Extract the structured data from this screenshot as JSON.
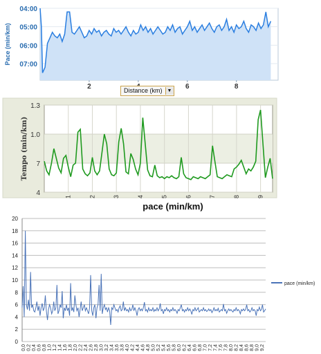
{
  "chart_data": [
    {
      "type": "area",
      "ylabel": "Pace (min/km)",
      "yticks": [
        "04:00",
        "05:00",
        "06:00",
        "07:00"
      ],
      "yticks_min": [
        4,
        5,
        6,
        7
      ],
      "xticks": [
        2,
        4,
        6,
        8
      ],
      "ylim": [
        7.9,
        4.0
      ],
      "xlim": [
        0,
        9.7
      ],
      "y_inverted": true,
      "grid": "horizontal",
      "colors": {
        "line": "#2a7ee0",
        "fill": "#cfe2f7",
        "axis_text": "#2a6db0"
      },
      "x": [
        0,
        0.05,
        0.1,
        0.2,
        0.3,
        0.4,
        0.5,
        0.6,
        0.7,
        0.8,
        0.9,
        1.0,
        1.1,
        1.2,
        1.3,
        1.4,
        1.5,
        1.6,
        1.7,
        1.8,
        1.9,
        2.0,
        2.1,
        2.2,
        2.3,
        2.4,
        2.5,
        2.6,
        2.7,
        2.8,
        2.9,
        3.0,
        3.1,
        3.2,
        3.3,
        3.4,
        3.5,
        3.6,
        3.7,
        3.8,
        3.9,
        4.0,
        4.1,
        4.2,
        4.3,
        4.4,
        4.5,
        4.6,
        4.7,
        4.8,
        4.9,
        5.0,
        5.1,
        5.2,
        5.3,
        5.4,
        5.5,
        5.6,
        5.7,
        5.8,
        5.9,
        6.0,
        6.1,
        6.2,
        6.3,
        6.4,
        6.5,
        6.6,
        6.7,
        6.8,
        6.9,
        7.0,
        7.1,
        7.2,
        7.3,
        7.4,
        7.5,
        7.6,
        7.7,
        7.8,
        7.9,
        8.0,
        8.1,
        8.2,
        8.3,
        8.4,
        8.5,
        8.6,
        8.7,
        8.8,
        8.9,
        9.0,
        9.1,
        9.2,
        9.3,
        9.4
      ],
      "values": [
        4.0,
        5.0,
        7.5,
        7.2,
        5.9,
        5.6,
        5.3,
        5.5,
        5.6,
        5.4,
        5.8,
        5.4,
        4.2,
        4.2,
        5.3,
        5.4,
        5.2,
        5.0,
        5.3,
        5.6,
        5.5,
        5.2,
        5.4,
        5.1,
        5.3,
        5.2,
        5.5,
        5.3,
        5.2,
        5.4,
        5.5,
        5.1,
        5.3,
        5.2,
        5.4,
        5.2,
        5.0,
        5.3,
        5.5,
        5.2,
        5.4,
        5.3,
        4.9,
        5.2,
        5.0,
        5.3,
        5.1,
        5.4,
        5.2,
        5.0,
        5.2,
        5.4,
        5.3,
        5.0,
        5.2,
        4.9,
        5.3,
        5.1,
        5.0,
        5.4,
        5.2,
        5.0,
        4.7,
        5.2,
        5.0,
        5.3,
        5.1,
        4.9,
        5.2,
        5.0,
        4.8,
        5.1,
        5.3,
        5.0,
        4.9,
        5.2,
        5.0,
        4.6,
        5.2,
        5.0,
        5.3,
        4.9,
        5.1,
        5.0,
        4.7,
        5.1,
        5.3,
        4.9,
        5.0,
        5.2,
        4.8,
        5.1,
        4.9,
        4.2,
        5.0,
        4.7
      ]
    },
    {
      "type": "line",
      "ylabel": "Tempo (min/km)",
      "yticks": [
        "4",
        "7",
        "1.0",
        "1.3"
      ],
      "yticks_val": [
        4,
        7,
        10,
        13
      ],
      "xticks": [
        1,
        2,
        3,
        4,
        5,
        6,
        7,
        8,
        9
      ],
      "ylim": [
        4,
        13
      ],
      "xlim": [
        0,
        9.5
      ],
      "title_below": "pace (min/km)",
      "colors": {
        "line": "#1f9a1f",
        "band": "#ecefe3",
        "frame": "#e9ebdd"
      },
      "x": [
        0,
        0.1,
        0.2,
        0.3,
        0.4,
        0.5,
        0.6,
        0.7,
        0.8,
        0.9,
        1.0,
        1.1,
        1.2,
        1.3,
        1.4,
        1.5,
        1.6,
        1.7,
        1.8,
        1.9,
        2.0,
        2.1,
        2.2,
        2.3,
        2.4,
        2.5,
        2.6,
        2.7,
        2.8,
        2.9,
        3.0,
        3.1,
        3.2,
        3.3,
        3.4,
        3.5,
        3.6,
        3.7,
        3.8,
        3.9,
        4.0,
        4.1,
        4.2,
        4.3,
        4.4,
        4.5,
        4.6,
        4.7,
        4.8,
        4.9,
        5.0,
        5.1,
        5.2,
        5.3,
        5.4,
        5.5,
        5.6,
        5.7,
        5.8,
        5.9,
        6.0,
        6.1,
        6.2,
        6.3,
        6.4,
        6.5,
        6.6,
        6.7,
        6.8,
        6.9,
        7.0,
        7.1,
        7.2,
        7.3,
        7.4,
        7.5,
        7.6,
        7.7,
        7.8,
        7.9,
        8.0,
        8.1,
        8.2,
        8.3,
        8.4,
        8.5,
        8.6,
        8.7,
        8.8,
        8.9,
        9.0,
        9.1,
        9.2,
        9.3,
        9.4,
        9.5
      ],
      "values": [
        7.2,
        6.2,
        5.8,
        7.0,
        8.5,
        7.5,
        6.5,
        6.0,
        7.5,
        7.8,
        6.6,
        5.6,
        6.8,
        7.0,
        10.2,
        10.5,
        6.4,
        5.9,
        5.7,
        6.0,
        7.6,
        6.2,
        5.8,
        6.2,
        8.1,
        10.0,
        9.0,
        6.4,
        5.8,
        5.7,
        6.0,
        9.2,
        10.6,
        9.0,
        6.1,
        5.9,
        8.0,
        7.4,
        6.4,
        5.8,
        7.0,
        11.7,
        9.0,
        6.3,
        5.7,
        5.6,
        6.8,
        5.7,
        5.5,
        5.6,
        5.4,
        5.6,
        5.5,
        5.7,
        5.5,
        5.4,
        5.6,
        7.6,
        5.9,
        5.5,
        5.4,
        5.3,
        5.6,
        5.5,
        5.4,
        5.6,
        5.5,
        5.4,
        5.6,
        5.8,
        8.8,
        7.2,
        5.6,
        5.5,
        5.4,
        5.6,
        5.8,
        5.7,
        5.6,
        6.4,
        6.6,
        6.9,
        7.3,
        6.6,
        5.9,
        6.4,
        6.2,
        6.6,
        7.2,
        11.5,
        12.5,
        9.0,
        5.5,
        6.6,
        7.5,
        5.4
      ]
    },
    {
      "type": "line",
      "title": "",
      "ylim": [
        0,
        20
      ],
      "yticks": [
        0,
        2,
        4,
        6,
        8,
        10,
        12,
        14,
        16,
        18,
        20
      ],
      "xticks": [
        "0,0",
        "0,2",
        "0,4",
        "0,6",
        "0,8",
        "1,0",
        "1,2",
        "1,4",
        "1,6",
        "1,8",
        "2,0",
        "2,2",
        "2,4",
        "2,6",
        "2,8",
        "3,0",
        "3,2",
        "3,4",
        "3,6",
        "3,8",
        "4,0",
        "4,2",
        "4,4",
        "4,6",
        "4,8",
        "5,0",
        "5,2",
        "5,4",
        "5,6",
        "5,8",
        "6,0",
        "6,2",
        "6,4",
        "6,6",
        "6,8",
        "7,0",
        "7,2",
        "7,4",
        "7,6",
        "7,8",
        "8,0",
        "8,2",
        "8,4",
        "8,6",
        "8,8",
        "9,0",
        "9,2"
      ],
      "legend": {
        "position": "right",
        "entries": [
          "pace (min/km)"
        ]
      },
      "series": [
        {
          "name": "pace (min/km)",
          "color": "#4a73b8"
        }
      ],
      "x_tick_labels_rotated": true,
      "grid": "horizontal",
      "values": [
        5.5,
        9.0,
        4.0,
        18.0,
        6.0,
        5.2,
        6.8,
        5.0,
        11.3,
        5.5,
        6.0,
        5.0,
        4.8,
        5.5,
        6.5,
        5.0,
        5.8,
        4.2,
        5.5,
        6.2,
        5.0,
        5.5,
        7.5,
        5.0,
        3.5,
        5.2,
        6.0,
        5.5,
        4.5,
        5.0,
        6.5,
        5.0,
        5.5,
        9.2,
        4.5,
        5.0,
        6.0,
        5.5,
        8.2,
        3.8,
        5.5,
        5.0,
        6.0,
        5.0,
        5.5,
        4.2,
        9.5,
        5.0,
        5.5,
        4.8,
        7.5,
        6.0,
        5.0,
        5.5,
        4.0,
        5.2,
        6.5,
        5.0,
        5.5,
        6.0,
        5.0,
        5.5,
        5.0,
        4.5,
        5.5,
        10.8,
        5.0,
        4.2,
        5.5,
        6.0,
        3.8,
        5.5,
        6.0,
        9.2,
        5.0,
        11.0,
        4.5,
        5.5,
        6.0,
        5.2,
        5.5,
        4.8,
        5.5,
        5.0,
        2.7,
        5.5,
        5.2,
        6.0,
        5.5,
        5.0,
        5.2,
        4.8,
        5.5,
        5.8,
        5.0,
        5.2,
        6.5,
        5.0,
        5.5,
        5.0,
        5.2,
        4.8,
        5.5,
        5.0,
        5.2,
        6.0,
        5.0,
        5.5,
        5.0,
        4.2,
        5.2,
        5.5,
        5.0,
        5.3,
        5.0,
        5.5,
        6.4,
        5.0,
        5.2,
        4.8,
        5.5,
        5.0,
        5.2,
        5.0,
        5.5,
        4.9,
        5.2,
        5.0,
        5.5,
        5.0,
        5.3,
        6.2,
        5.0,
        5.2,
        4.5,
        5.2,
        5.0,
        5.5,
        5.0,
        5.2,
        4.8,
        5.2,
        5.0,
        5.5,
        5.0,
        5.2,
        5.0,
        4.6,
        5.2,
        5.0,
        5.5,
        6.0,
        5.0,
        5.2,
        4.8,
        5.2,
        5.0,
        5.5,
        5.0,
        5.3,
        5.0,
        4.4,
        5.2,
        5.0,
        5.5,
        5.0,
        5.2,
        5.5,
        4.8,
        5.0,
        5.2,
        5.0,
        5.5,
        5.0,
        5.2,
        4.9,
        5.0,
        5.3,
        5.0,
        5.2,
        4.7,
        5.0,
        5.5,
        5.0,
        5.2,
        5.0,
        5.4,
        4.8,
        5.0,
        5.2,
        5.0,
        6.1,
        5.0,
        5.2,
        4.6,
        5.0,
        5.3,
        5.0,
        5.2,
        5.0,
        4.8,
        5.2,
        5.0,
        5.5,
        5.0,
        5.2,
        5.0,
        4.5,
        5.2,
        5.0,
        5.3,
        5.0,
        5.2,
        6.0,
        5.0,
        5.2,
        4.8,
        5.0,
        5.5,
        5.0,
        5.2,
        5.0,
        4.2,
        5.2,
        5.0,
        5.6,
        5.0,
        5.2,
        6.0,
        4.8,
        5.0,
        5.3
      ]
    }
  ],
  "controls": {
    "distance_select": {
      "value": "Distance (km)",
      "arrow_icon": "chevron-down-icon"
    }
  }
}
